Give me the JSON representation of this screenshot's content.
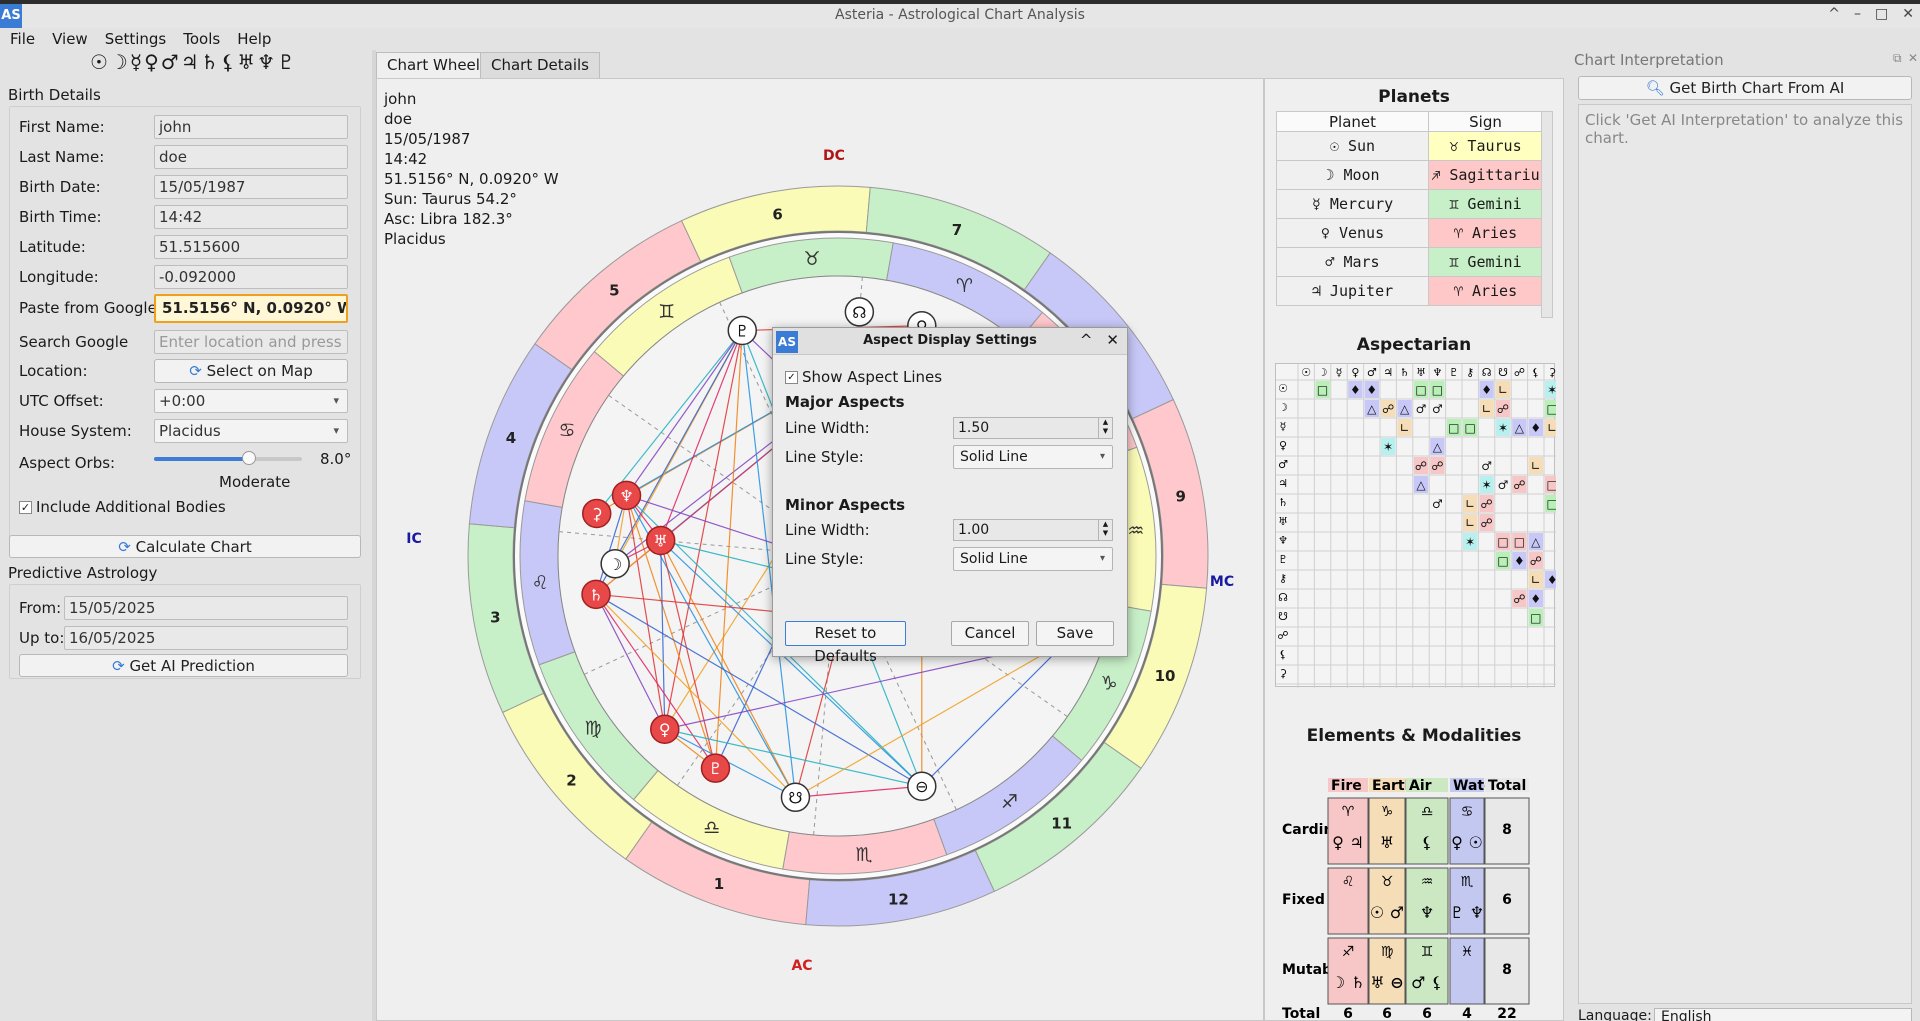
{
  "window": {
    "app_icon": "AS",
    "title": "Asteria - Astrological Chart Analysis",
    "buttons": [
      "^",
      "–",
      "□",
      "✕"
    ]
  },
  "menu": [
    "File",
    "View",
    "Settings",
    "Tools",
    "Help"
  ],
  "planet_toolbar": "☉☽☿♀♂♃♄⚸♅♆♇",
  "birth_details": {
    "title": "Birth Details",
    "first_name_label": "First Name:",
    "first_name": "john",
    "last_name_label": "Last Name:",
    "last_name": "doe",
    "birth_date_label": "Birth Date:",
    "birth_date": "15/05/1987",
    "birth_time_label": "Birth Time:",
    "birth_time": "14:42",
    "latitude_label": "Latitude:",
    "latitude": "51.515600",
    "longitude_label": "Longitude:",
    "longitude": "-0.092000",
    "paste_label": "Paste from Google:",
    "paste_value": "51.5156° N, 0.0920° W",
    "search_label": "Search Google",
    "search_placeholder": "Enter location and press ...",
    "location_label": "Location:",
    "select_map_button": "Select on Map",
    "utc_label": "UTC Offset:",
    "utc_value": "+0:00",
    "house_label": "House System:",
    "house_value": "Placidus",
    "orbs_label": "Aspect Orbs:",
    "orbs_value": "8.0°",
    "orbs_level": 0.64,
    "orbs_desc": "Moderate",
    "include_bodies": "Include Additional Bodies",
    "calculate_button": "Calculate Chart"
  },
  "predictive": {
    "title": "Predictive Astrology",
    "from_label": "From:",
    "from_value": "15/05/2025",
    "to_label": "Up to:",
    "to_value": "16/05/2025",
    "predict_button": "Get AI Prediction"
  },
  "tabs": [
    "Chart Wheel",
    "Chart Details"
  ],
  "chart_info": [
    "john",
    "doe",
    "15/05/1987",
    "14:42",
    "51.5156° N, 0.0920° W",
    "Sun: Taurus 54.2°",
    "Asc: Libra 182.3°",
    "Placidus"
  ],
  "wheel": {
    "angles": {
      "top": "DC",
      "bottom": "AC",
      "left": "IC",
      "right": "MC"
    },
    "houses": [
      "1",
      "2",
      "3",
      "4",
      "5",
      "6",
      "7",
      "8",
      "9",
      "10",
      "11",
      "12"
    ],
    "signs": [
      "♈",
      "♉",
      "♊",
      "♋",
      "♌",
      "♍",
      "♎",
      "♏",
      "♐",
      "♑",
      "♒",
      "♓"
    ]
  },
  "planets_panel": {
    "title": "Planets",
    "headers": [
      "Planet",
      "Sign"
    ],
    "rows": [
      {
        "planet": "☉ Sun",
        "sign": "♉ Taurus",
        "color": "#ffffc0"
      },
      {
        "planet": "☽ Moon",
        "sign": "♐ Sagittariu",
        "color": "#ffc8c8"
      },
      {
        "planet": "☿ Mercury",
        "sign": "♊ Gemini",
        "color": "#c8f0c8"
      },
      {
        "planet": "♀ Venus",
        "sign": "♈ Aries",
        "color": "#ffc8c8"
      },
      {
        "planet": "♂ Mars",
        "sign": "♊ Gemini",
        "color": "#c8f0c8"
      },
      {
        "planet": "♃ Jupiter",
        "sign": "♈ Aries",
        "color": "#ffc8c8"
      }
    ]
  },
  "aspectarian": {
    "title": "Aspectarian",
    "glyphs": [
      "☉",
      "☽",
      "☿",
      "♀",
      "♂",
      "♃",
      "♄",
      "♅",
      "♆",
      "♇",
      "⚷",
      "☊",
      "☋",
      "☍",
      "⚸",
      "⚳"
    ]
  },
  "elements": {
    "title": "Elements & Modalities",
    "headers": [
      "Fire",
      "Earth",
      "Air",
      "Water",
      "Total"
    ],
    "header_colors": [
      "#f7c6c6",
      "#f5ddb8",
      "#cbe8c3",
      "#c2c8f0",
      "#e8e8e8"
    ],
    "rows": [
      "Cardin",
      "Fixed",
      "Mutab"
    ],
    "totals_label": "Total",
    "totals": [
      "6",
      "6",
      "6",
      "4",
      "22"
    ],
    "row_totals": [
      "8",
      "6",
      "8"
    ]
  },
  "interpretation": {
    "title": "Chart Interpretation",
    "button": "Get Birth Chart From AI",
    "placeholder": "Click 'Get AI Interpretation' to analyze this chart.",
    "language_label": "Language:",
    "language_value": "English"
  },
  "dialog": {
    "icon": "AS",
    "title": "Aspect Display Settings",
    "show_lines": "Show Aspect Lines",
    "major_title": "Major Aspects",
    "major_width_label": "Line Width:",
    "major_width": "1.50",
    "major_style_label": "Line Style:",
    "major_style": "Solid Line",
    "minor_title": "Minor Aspects",
    "minor_width_label": "Line Width:",
    "minor_width": "1.00",
    "minor_style_label": "Line Style:",
    "minor_style": "Solid Line",
    "reset_button": "Reset to Defaults",
    "cancel_button": "Cancel",
    "save_button": "Save"
  }
}
